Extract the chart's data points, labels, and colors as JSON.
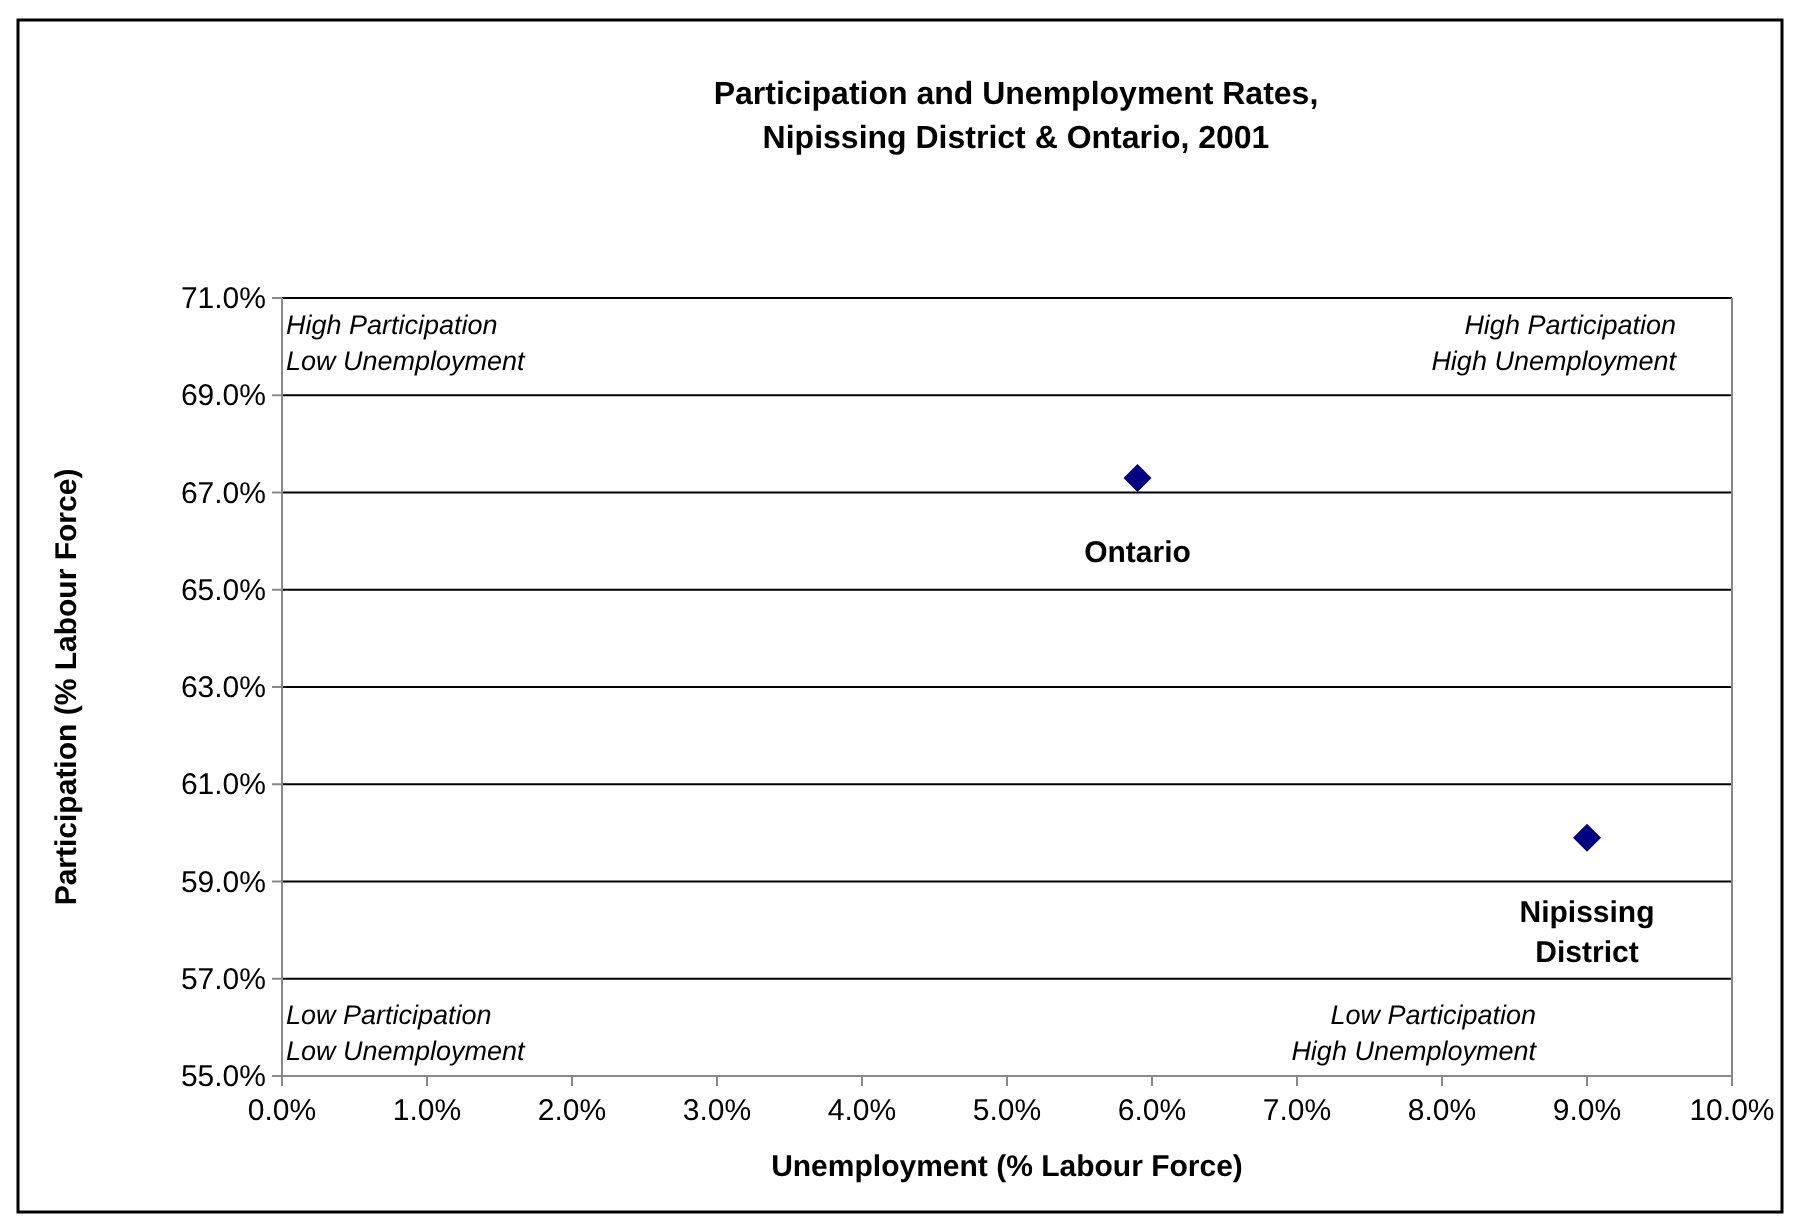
{
  "chart_data": {
    "type": "scatter",
    "title": "Participation and Unemployment Rates,\nNipissing District & Ontario, 2001",
    "xlabel": "Unemployment (% Labour Force)",
    "ylabel": "Participation (% Labour Force)",
    "series": [
      {
        "color": "#000080",
        "x": [
          5.9,
          9.0
        ],
        "values": [
          67.3,
          59.9
        ],
        "value_labels": [
          "Ontario",
          "Nipissing\nDistrict"
        ]
      }
    ],
    "annotations": [
      "High Participation\nLow Unemployment",
      "High Participation\nHigh Unemployment",
      "Low Participation\nLow Unemployment",
      "Low Participation\nHigh Unemployment"
    ],
    "xlim": [
      0,
      10
    ],
    "xticks": [
      {
        "value": 0,
        "label": "0.0%"
      },
      {
        "value": 1,
        "label": "1.0%"
      },
      {
        "value": 2,
        "label": "2.0%"
      },
      {
        "value": 3,
        "label": "3.0%"
      },
      {
        "value": 4,
        "label": "4.0%"
      },
      {
        "value": 5,
        "label": "5.0%"
      },
      {
        "value": 6,
        "label": "6.0%"
      },
      {
        "value": 7,
        "label": "7.0%"
      },
      {
        "value": 8,
        "label": "8.0%"
      },
      {
        "value": 9,
        "label": "9.0%"
      },
      {
        "value": 10,
        "label": "10.0%"
      }
    ],
    "ylim": [
      55,
      71
    ],
    "yticks": [
      {
        "value": 55,
        "label": "55.0%"
      },
      {
        "value": 57,
        "label": "57.0%"
      },
      {
        "value": 59,
        "label": "59.0%"
      },
      {
        "value": 61,
        "label": "61.0%"
      },
      {
        "value": 63,
        "label": "63.0%"
      },
      {
        "value": 65,
        "label": "65.0%"
      },
      {
        "value": 67,
        "label": "67.0%"
      },
      {
        "value": 69,
        "label": "69.0%"
      },
      {
        "value": 71,
        "label": "71.0%"
      }
    ],
    "grid": "y",
    "marker": "diamond"
  }
}
